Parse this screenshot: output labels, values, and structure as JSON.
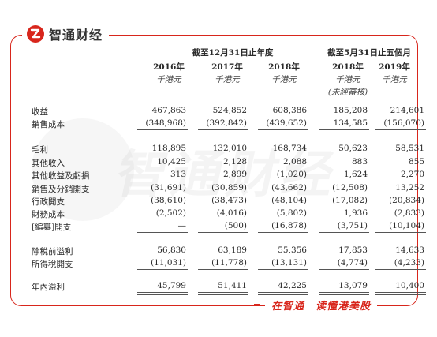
{
  "brand": {
    "name": "智通财经",
    "logo_icon": "zhitong-logo-icon",
    "accent": "#d8261c"
  },
  "slogan": {
    "part1": "在智通",
    "part2": "读懂港美股"
  },
  "watermark": "智通财经",
  "table": {
    "group_headers": [
      "截至12月31日止年度",
      "截至5月31日止五個月"
    ],
    "columns": [
      {
        "year": "2016年",
        "unit": "千港元",
        "note": ""
      },
      {
        "year": "2017年",
        "unit": "千港元",
        "note": ""
      },
      {
        "year": "2018年",
        "unit": "千港元",
        "note": ""
      },
      {
        "year": "2018年",
        "unit": "千港元",
        "note": "(未經審核)"
      },
      {
        "year": "2019年",
        "unit": "千港元",
        "note": ""
      }
    ],
    "rows": [
      {
        "label": "收益",
        "values": [
          "467,863",
          "524,852",
          "608,386",
          "185,208",
          "214,601"
        ]
      },
      {
        "label": "銷售成本",
        "values": [
          "(348,968)",
          "(392,842)",
          "(439,652)",
          "134,585",
          "(156,070)"
        ]
      },
      {
        "label": "毛利",
        "values": [
          "118,895",
          "132,010",
          "168,734",
          "50,623",
          "58,531"
        ]
      },
      {
        "label": "其他收入",
        "values": [
          "10,425",
          "2,128",
          "2,088",
          "883",
          "855"
        ]
      },
      {
        "label": "其他收益及虧損",
        "values": [
          "313",
          "2,899",
          "(1,020)",
          "1,624",
          "2,270"
        ]
      },
      {
        "label": "銷售及分銷開支",
        "values": [
          "(31,691)",
          "(30,859)",
          "(43,662)",
          "(12,508)",
          "13,252"
        ]
      },
      {
        "label": "行政開支",
        "values": [
          "(38,610)",
          "(38,473)",
          "(48,104)",
          "(17,082)",
          "(20,834)"
        ]
      },
      {
        "label": "財務成本",
        "values": [
          "(2,502)",
          "(4,016)",
          "(5,802)",
          "1,936",
          "(2,833)"
        ]
      },
      {
        "label": "[編纂]開支",
        "values": [
          "—",
          "(500)",
          "(16,878)",
          "(3,751)",
          "(10,104)"
        ]
      },
      {
        "label": "除稅前溢利",
        "values": [
          "56,830",
          "63,189",
          "55,356",
          "17,853",
          "14,633"
        ]
      },
      {
        "label": "所得稅開支",
        "values": [
          "(11,031)",
          "(11,778)",
          "(13,131)",
          "(4,774)",
          "(4,233)"
        ]
      },
      {
        "label": "年內溢利",
        "values": [
          "45,799",
          "51,411",
          "42,225",
          "13,079",
          "10,400"
        ]
      }
    ]
  }
}
